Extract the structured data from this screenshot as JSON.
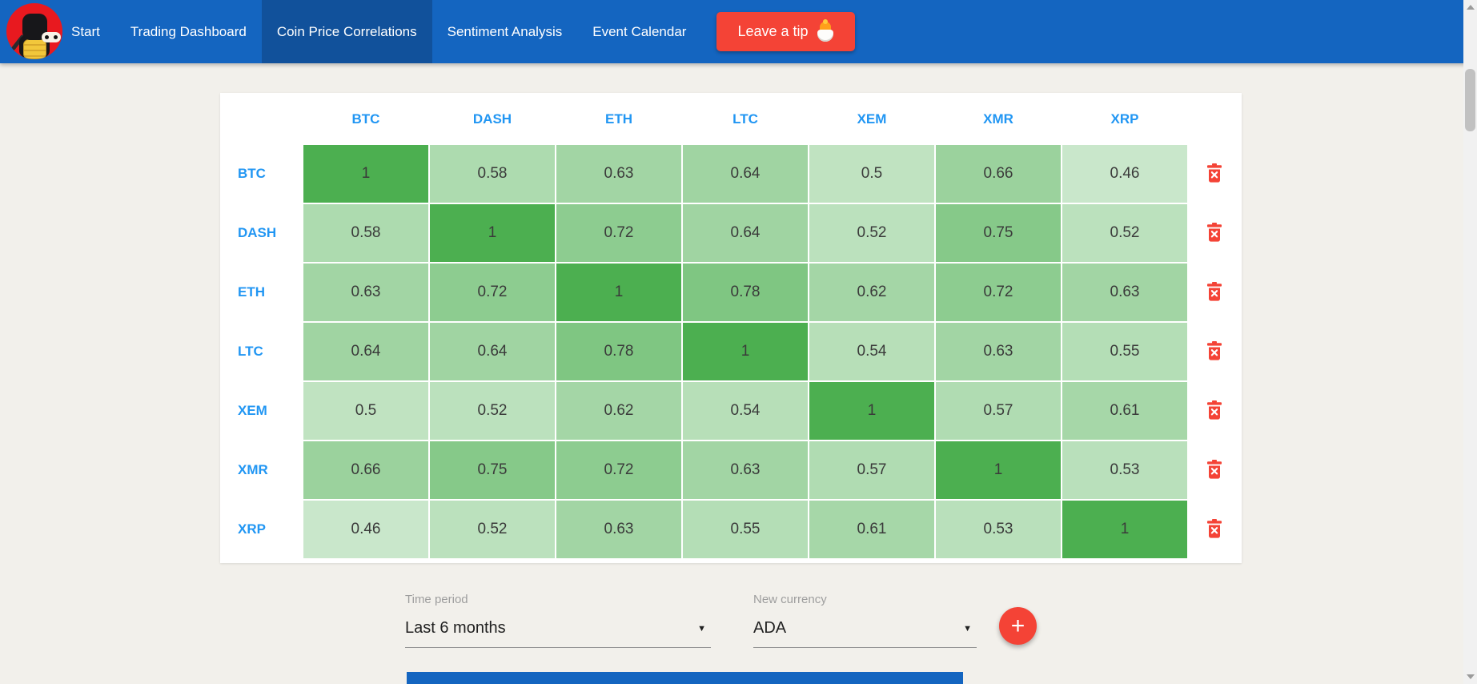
{
  "nav": {
    "background": "#1465c0",
    "active_background": "#11519b",
    "logo_name": "ninja-with-coins-logo",
    "items": [
      {
        "label": "Start",
        "active": false
      },
      {
        "label": "Trading Dashboard",
        "active": false
      },
      {
        "label": "Coin Price Correlations",
        "active": true
      },
      {
        "label": "Sentiment Analysis",
        "active": false
      },
      {
        "label": "Event Calendar",
        "active": false
      }
    ],
    "tip_button": {
      "label": "Leave a tip",
      "emoji_name": "hatching-chick",
      "color": "#f44336"
    }
  },
  "chart_data": {
    "type": "heatmap",
    "title": "Coin Price Correlations",
    "x_categories": [
      "BTC",
      "DASH",
      "ETH",
      "LTC",
      "XEM",
      "XMR",
      "XRP"
    ],
    "y_categories": [
      "BTC",
      "DASH",
      "ETH",
      "LTC",
      "XEM",
      "XMR",
      "XRP"
    ],
    "values": [
      [
        1,
        0.58,
        0.63,
        0.64,
        0.5,
        0.66,
        0.46
      ],
      [
        0.58,
        1,
        0.72,
        0.64,
        0.52,
        0.75,
        0.52
      ],
      [
        0.63,
        0.72,
        1,
        0.78,
        0.62,
        0.72,
        0.63
      ],
      [
        0.64,
        0.64,
        0.78,
        1,
        0.54,
        0.63,
        0.55
      ],
      [
        0.5,
        0.52,
        0.62,
        0.54,
        1,
        0.57,
        0.61
      ],
      [
        0.66,
        0.75,
        0.72,
        0.63,
        0.57,
        1,
        0.53
      ],
      [
        0.46,
        0.52,
        0.63,
        0.55,
        0.61,
        0.53,
        1
      ]
    ],
    "color_scale": {
      "low": "#c9e5ca",
      "high": "#4caf50"
    },
    "header_color": "#2196f3",
    "row_action_icon": "trash-x-icon",
    "row_action_color": "#f44336",
    "legend": "none",
    "value_range": [
      0.46,
      1
    ]
  },
  "controls": {
    "time_period": {
      "label": "Time period",
      "value": "Last 6 months"
    },
    "new_currency": {
      "label": "New currency",
      "value": "ADA"
    },
    "dropdown_arrow": "▼",
    "add_button_label": "+"
  }
}
